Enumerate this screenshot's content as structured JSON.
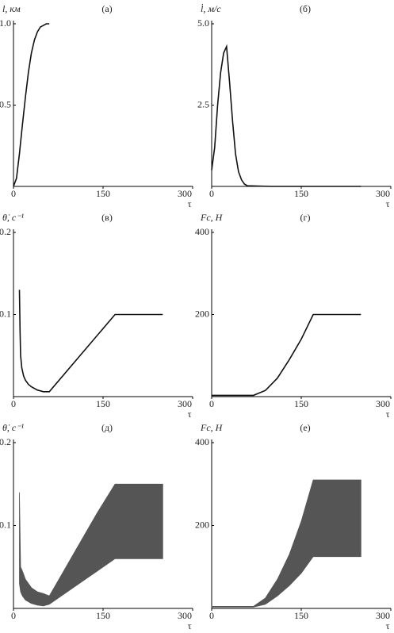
{
  "chart_data": [
    {
      "type": "line",
      "ylabel": "l, км",
      "panel": "(а)",
      "xlabel": "τ",
      "color": "#111",
      "x": [
        0,
        5,
        10,
        15,
        20,
        25,
        30,
        35,
        40,
        45,
        50,
        55,
        60
      ],
      "values": [
        0,
        0.05,
        0.2,
        0.38,
        0.55,
        0.7,
        0.82,
        0.9,
        0.95,
        0.98,
        0.99,
        1,
        1
      ],
      "xlim": [
        0,
        300
      ],
      "xticks": [
        0,
        150,
        300
      ],
      "ylim": [
        0,
        1.0
      ],
      "yticks": [
        0.5,
        {
          "value": 1,
          "label": "1.0"
        }
      ]
    },
    {
      "type": "line",
      "ylabel": "l̇, м/с",
      "panel": "(б)",
      "xlabel": "τ",
      "color": "#111",
      "x": [
        0,
        5,
        10,
        15,
        20,
        25,
        30,
        35,
        40,
        45,
        50,
        55,
        60,
        100,
        150,
        200,
        250
      ],
      "values": [
        0.5,
        1.2,
        2.5,
        3.5,
        4.1,
        4.3,
        3.2,
        2,
        1,
        0.45,
        0.2,
        0.07,
        0.02,
        0,
        0,
        0,
        0
      ],
      "xlim": [
        0,
        300
      ],
      "xticks": [
        0,
        150,
        300
      ],
      "ylim": [
        0,
        5
      ],
      "yticks": [
        2.5,
        {
          "value": 5,
          "label": "5.0"
        }
      ]
    },
    {
      "type": "line",
      "ylabel": "θ̇, с⁻¹",
      "panel": "(в)",
      "xlabel": "τ",
      "color": "#111",
      "x": [
        10,
        11,
        12,
        14,
        17,
        20,
        25,
        30,
        40,
        50,
        60,
        170,
        250
      ],
      "values": [
        0.13,
        0.08,
        0.05,
        0.035,
        0.025,
        0.02,
        0.015,
        0.012,
        0.008,
        0.006,
        0.006,
        0.1,
        0.1
      ],
      "xlim": [
        0,
        300
      ],
      "xticks": [
        0,
        150,
        300
      ],
      "ylim": [
        0,
        0.2
      ],
      "yticks": [
        0.1,
        0.2
      ]
    },
    {
      "type": "line",
      "ylabel": "Fc, Н",
      "panel": "(г)",
      "xlabel": "τ",
      "color": "#111",
      "x": [
        0,
        20,
        40,
        60,
        70,
        90,
        110,
        130,
        150,
        170,
        250
      ],
      "values": [
        3,
        3,
        3,
        3,
        3,
        15,
        45,
        90,
        140,
        200,
        200
      ],
      "xlim": [
        0,
        300
      ],
      "xticks": [
        0,
        150,
        300
      ],
      "ylim": [
        0,
        400
      ],
      "yticks": [
        200,
        400
      ]
    },
    {
      "type": "band",
      "ylabel": "θ̇, с⁻¹",
      "panel": "(д)",
      "xlabel": "τ",
      "color": "#555",
      "x": [
        10,
        12,
        15,
        20,
        30,
        40,
        50,
        60,
        80,
        100,
        120,
        140,
        170,
        250
      ],
      "upper": [
        0.14,
        0.05,
        0.045,
        0.035,
        0.025,
        0.02,
        0.018,
        0.015,
        0.04,
        0.065,
        0.09,
        0.115,
        0.15,
        0.15
      ],
      "lower": [
        0.03,
        0.02,
        0.015,
        0.01,
        0.006,
        0.004,
        0.003,
        0.005,
        0.015,
        0.025,
        0.035,
        0.045,
        0.06,
        0.06
      ],
      "xlim": [
        0,
        300
      ],
      "xticks": [
        0,
        150,
        300
      ],
      "ylim": [
        0,
        0.2
      ],
      "yticks": [
        0.1,
        0.2
      ]
    },
    {
      "type": "band",
      "ylabel": "Fc, Н",
      "panel": "(е)",
      "xlabel": "τ",
      "color": "#555",
      "x": [
        0,
        40,
        70,
        90,
        110,
        130,
        150,
        170,
        250
      ],
      "upper": [
        5,
        5,
        5,
        25,
        70,
        130,
        210,
        310,
        310
      ],
      "lower": [
        3,
        3,
        3,
        10,
        30,
        55,
        85,
        125,
        125
      ],
      "xlim": [
        0,
        300
      ],
      "xticks": [
        0,
        150,
        300
      ],
      "ylim": [
        0,
        400
      ],
      "yticks": [
        200,
        400
      ]
    }
  ]
}
